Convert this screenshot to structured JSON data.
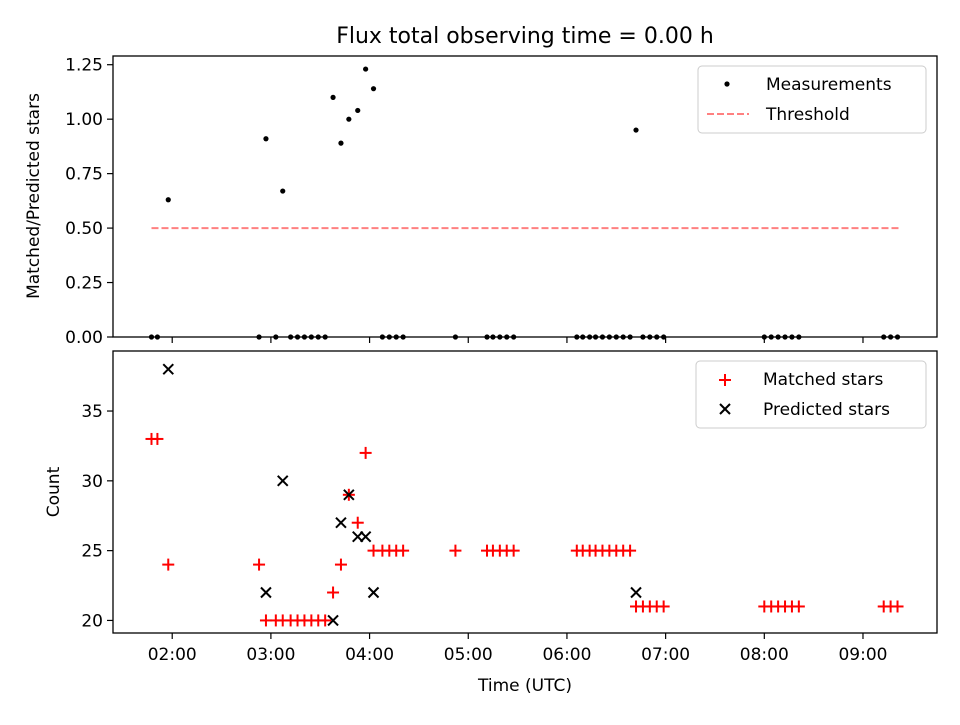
{
  "chart_data": [
    {
      "type": "scatter",
      "title": "Flux total observing time = 0.00 h",
      "xlabel": "",
      "ylabel": "Matched/Predicted stars",
      "xlim": [
        1.4,
        9.75
      ],
      "ylim": [
        0,
        1.29
      ],
      "yticks": [
        0,
        0.25,
        0.5,
        0.75,
        1.0,
        1.25
      ],
      "ytick_labels": [
        "0.00",
        "0.25",
        "0.50",
        "0.75",
        "1.00",
        "1.25"
      ],
      "legend_position": "top-right",
      "series": [
        {
          "name": "Measurements",
          "marker": "dot",
          "color": "#000000",
          "points": [
            [
              1.79,
              0
            ],
            [
              1.85,
              0
            ],
            [
              1.96,
              0.63
            ],
            [
              2.88,
              0
            ],
            [
              2.95,
              0.91
            ],
            [
              3.05,
              0
            ],
            [
              3.12,
              0.67
            ],
            [
              3.2,
              0
            ],
            [
              3.27,
              0
            ],
            [
              3.34,
              0
            ],
            [
              3.41,
              0
            ],
            [
              3.48,
              0
            ],
            [
              3.55,
              0
            ],
            [
              3.63,
              1.1
            ],
            [
              3.71,
              0.89
            ],
            [
              3.79,
              1.0
            ],
            [
              3.88,
              1.04
            ],
            [
              3.96,
              1.23
            ],
            [
              4.04,
              1.14
            ],
            [
              4.13,
              0
            ],
            [
              4.2,
              0
            ],
            [
              4.27,
              0
            ],
            [
              4.34,
              0
            ],
            [
              4.87,
              0
            ],
            [
              5.19,
              0
            ],
            [
              5.25,
              0
            ],
            [
              5.32,
              0
            ],
            [
              5.39,
              0
            ],
            [
              5.46,
              0
            ],
            [
              6.1,
              0
            ],
            [
              6.16,
              0
            ],
            [
              6.23,
              0
            ],
            [
              6.29,
              0
            ],
            [
              6.36,
              0
            ],
            [
              6.43,
              0
            ],
            [
              6.5,
              0
            ],
            [
              6.57,
              0
            ],
            [
              6.64,
              0
            ],
            [
              6.7,
              0.95
            ],
            [
              6.77,
              0
            ],
            [
              6.84,
              0
            ],
            [
              6.91,
              0
            ],
            [
              6.98,
              0
            ],
            [
              8.0,
              0
            ],
            [
              8.07,
              0
            ],
            [
              8.14,
              0
            ],
            [
              8.21,
              0
            ],
            [
              8.28,
              0
            ],
            [
              8.35,
              0
            ],
            [
              9.21,
              0
            ],
            [
              9.28,
              0
            ],
            [
              9.35,
              0
            ]
          ]
        },
        {
          "name": "Threshold",
          "line": "dashed",
          "color": "#ff8080",
          "points": [
            [
              1.79,
              0.5
            ],
            [
              9.37,
              0.5
            ]
          ]
        }
      ]
    },
    {
      "type": "scatter",
      "title": "",
      "xlabel": "Time (UTC)",
      "ylabel": "Count",
      "xlim": [
        1.4,
        9.75
      ],
      "ylim": [
        19.1,
        39.3
      ],
      "yticks": [
        20,
        25,
        30,
        35
      ],
      "ytick_labels": [
        "20",
        "25",
        "30",
        "35"
      ],
      "xticks": [
        2,
        3,
        4,
        5,
        6,
        7,
        8,
        9
      ],
      "xtick_labels": [
        "02:00",
        "03:00",
        "04:00",
        "05:00",
        "06:00",
        "07:00",
        "08:00",
        "09:00"
      ],
      "legend_position": "top-right",
      "series": [
        {
          "name": "Matched stars",
          "marker": "plus",
          "color": "#ff0000",
          "points": [
            [
              1.79,
              33
            ],
            [
              1.85,
              33
            ],
            [
              1.96,
              24
            ],
            [
              2.88,
              24
            ],
            [
              2.95,
              20
            ],
            [
              3.05,
              20
            ],
            [
              3.12,
              20
            ],
            [
              3.2,
              20
            ],
            [
              3.27,
              20
            ],
            [
              3.34,
              20
            ],
            [
              3.41,
              20
            ],
            [
              3.48,
              20
            ],
            [
              3.55,
              20
            ],
            [
              3.63,
              22
            ],
            [
              3.71,
              24
            ],
            [
              3.79,
              29
            ],
            [
              3.88,
              27
            ],
            [
              3.96,
              32
            ],
            [
              4.04,
              25
            ],
            [
              4.13,
              25
            ],
            [
              4.2,
              25
            ],
            [
              4.27,
              25
            ],
            [
              4.34,
              25
            ],
            [
              4.87,
              25
            ],
            [
              5.19,
              25
            ],
            [
              5.25,
              25
            ],
            [
              5.32,
              25
            ],
            [
              5.39,
              25
            ],
            [
              5.46,
              25
            ],
            [
              6.1,
              25
            ],
            [
              6.16,
              25
            ],
            [
              6.23,
              25
            ],
            [
              6.29,
              25
            ],
            [
              6.36,
              25
            ],
            [
              6.43,
              25
            ],
            [
              6.5,
              25
            ],
            [
              6.57,
              25
            ],
            [
              6.64,
              25
            ],
            [
              6.7,
              21
            ],
            [
              6.77,
              21
            ],
            [
              6.84,
              21
            ],
            [
              6.91,
              21
            ],
            [
              6.98,
              21
            ],
            [
              8.0,
              21
            ],
            [
              8.07,
              21
            ],
            [
              8.14,
              21
            ],
            [
              8.21,
              21
            ],
            [
              8.28,
              21
            ],
            [
              8.35,
              21
            ],
            [
              9.21,
              21
            ],
            [
              9.28,
              21
            ],
            [
              9.35,
              21
            ]
          ]
        },
        {
          "name": "Predicted stars",
          "marker": "x",
          "color": "#000000",
          "points": [
            [
              1.96,
              38
            ],
            [
              2.95,
              22
            ],
            [
              3.12,
              30
            ],
            [
              3.63,
              20
            ],
            [
              3.71,
              27
            ],
            [
              3.79,
              29
            ],
            [
              3.88,
              26
            ],
            [
              3.96,
              26
            ],
            [
              4.04,
              22
            ],
            [
              6.7,
              22
            ]
          ]
        }
      ]
    }
  ]
}
